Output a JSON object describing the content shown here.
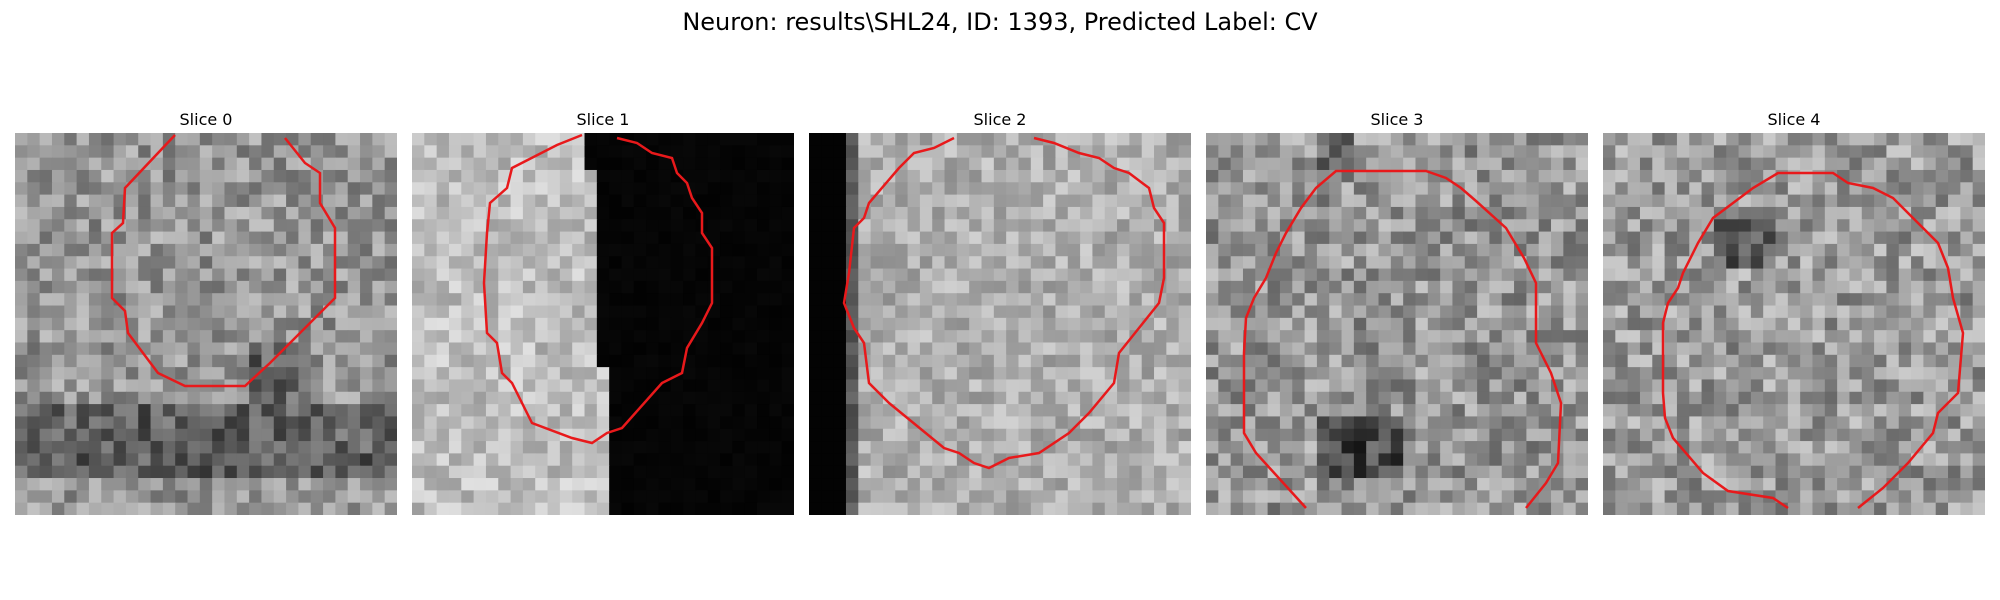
{
  "figure": {
    "suptitle": "Neuron: results\\SHL24, ID: 1393, Predicted Label: CV",
    "contour_color": "#e8191b"
  },
  "slices": [
    {
      "title": "Slice 0"
    },
    {
      "title": "Slice 1"
    },
    {
      "title": "Slice 2"
    },
    {
      "title": "Slice 3"
    },
    {
      "title": "Slice 4"
    }
  ]
}
